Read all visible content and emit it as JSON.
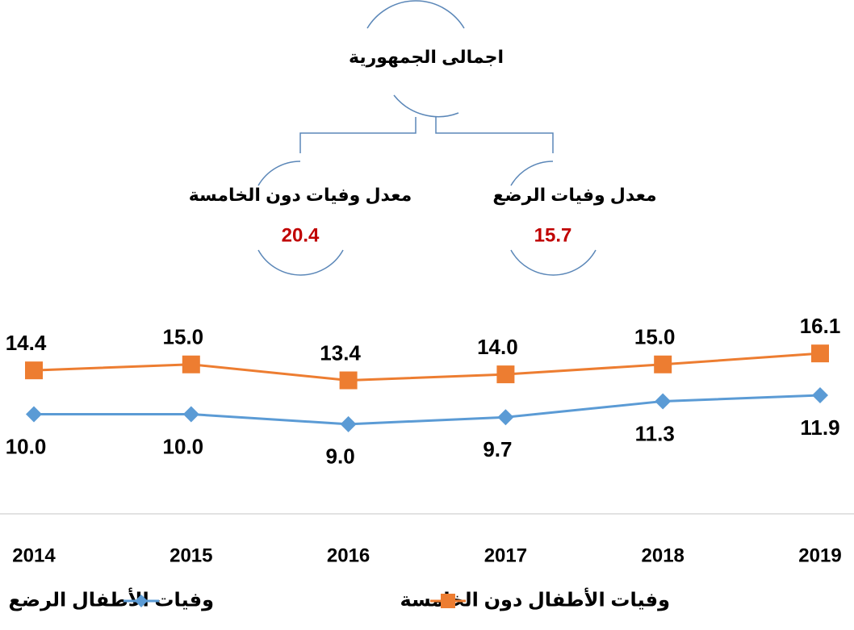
{
  "diagram": {
    "top": "اجمالى الجمهورية",
    "left": {
      "label": "معدل وفيات دون الخامسة",
      "value": 20.4
    },
    "right": {
      "label": "معدل وفيات الرضع",
      "value": 15.7
    }
  },
  "chart_data": {
    "type": "line",
    "categories": [
      "2014",
      "2015",
      "2016",
      "2017",
      "2018",
      "2019"
    ],
    "series": [
      {
        "name": "وفيات الأطفال دون الخامسة",
        "color": "#ED7D31",
        "marker": "square",
        "values": [
          14.4,
          15.0,
          13.4,
          14.0,
          15.0,
          16.1
        ],
        "value_labels": [
          "14.4",
          "15.0",
          "13.4",
          "14.0",
          "15.0",
          "16.1"
        ]
      },
      {
        "name": "وفيات الأطفال الرضع",
        "color": "#5B9BD5",
        "marker": "diamond",
        "values": [
          10.0,
          10.0,
          9.0,
          9.7,
          11.3,
          11.9
        ],
        "value_labels": [
          "10.0",
          "10.0",
          "9.0",
          "9.7",
          "11.3",
          "11.9"
        ]
      }
    ],
    "ylim": [
      0,
      20
    ]
  }
}
